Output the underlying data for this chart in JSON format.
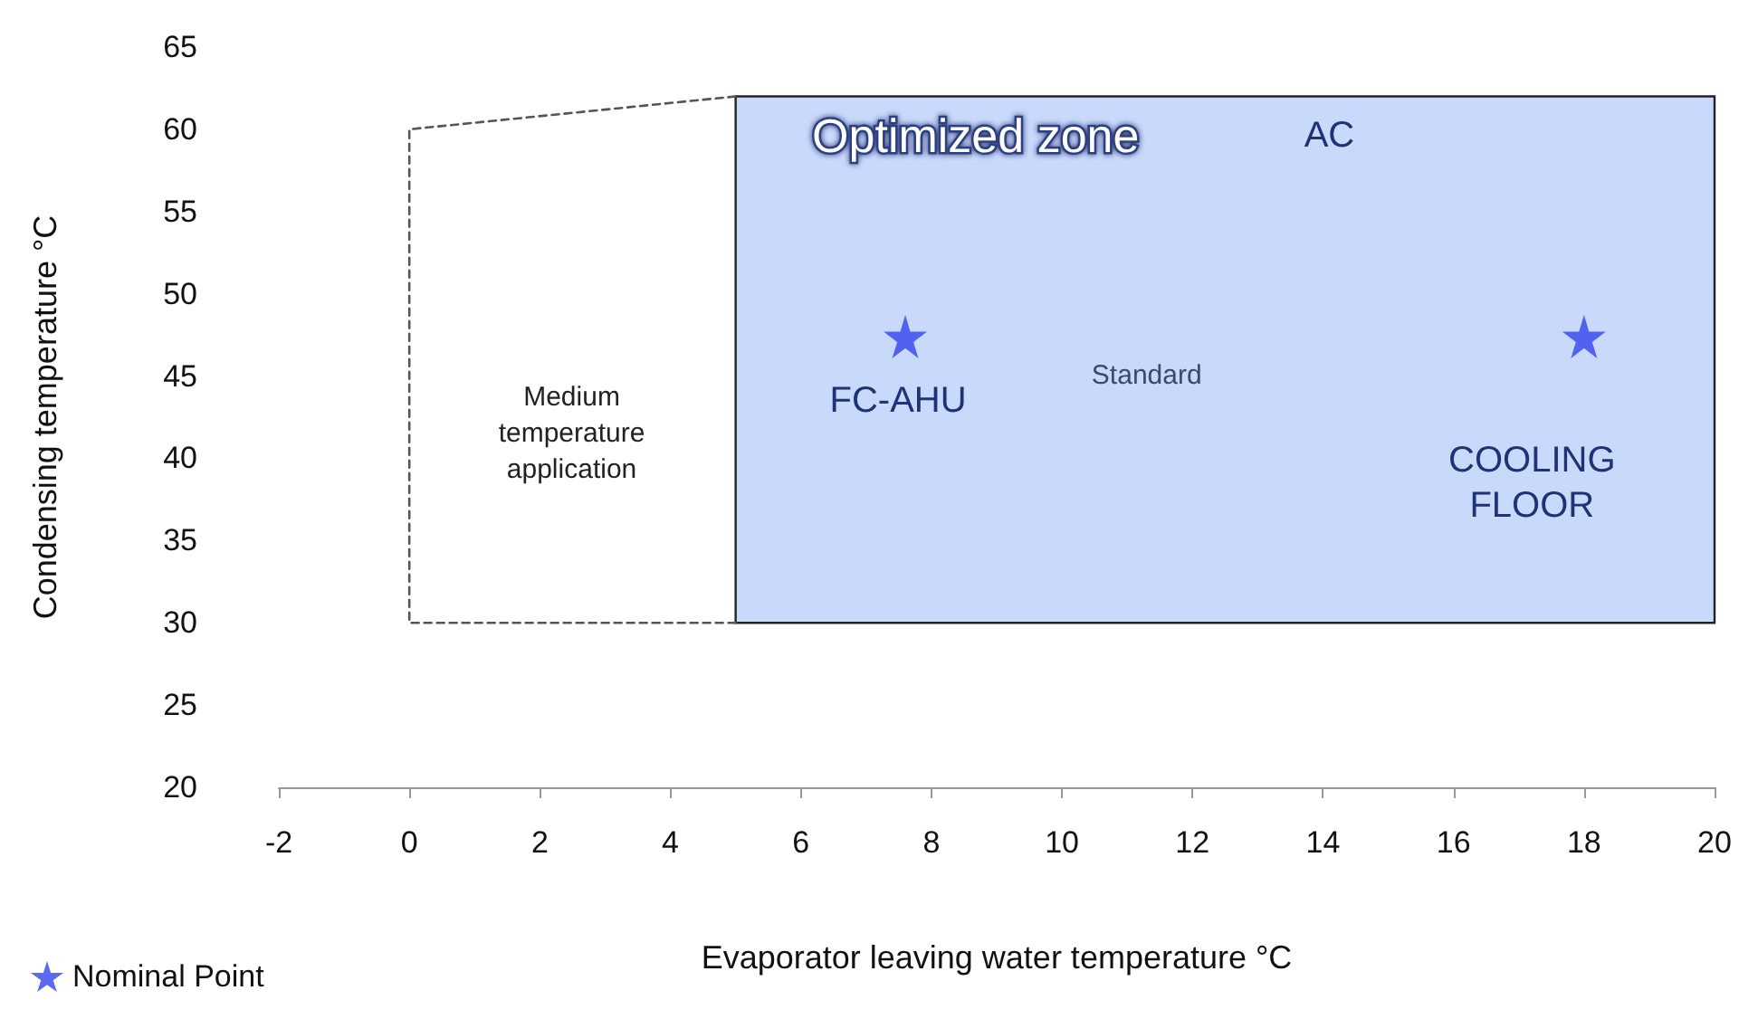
{
  "chart_data": {
    "type": "scatter",
    "xlabel": "Evaporator leaving water temperature °C",
    "ylabel": "Condensing temperature °C",
    "xlim": [
      -2,
      20
    ],
    "xticks": [
      -2,
      0,
      2,
      4,
      6,
      8,
      10,
      12,
      14,
      16,
      18,
      20
    ],
    "ylim": [
      20,
      65
    ],
    "yticks": [
      20,
      25,
      30,
      35,
      40,
      45,
      50,
      55,
      60,
      65
    ],
    "grid": false,
    "legend": "bottom left",
    "series": [
      {
        "type": "area",
        "color": "#c9d9fb",
        "x": [
          5,
          5,
          20,
          20
        ],
        "values": [
          30,
          62,
          62,
          30
        ]
      },
      {
        "type": "line",
        "color": "#555555",
        "line_style": "dashed",
        "marker": "none",
        "x": [
          5,
          0,
          0,
          5
        ],
        "values": [
          30,
          30,
          60,
          62
        ]
      },
      {
        "name": "Nominal Point",
        "color": "#3344ee",
        "marker": "star",
        "x": [
          7.6,
          18
        ],
        "values": [
          47.4,
          47.4
        ]
      }
    ],
    "annotations": [
      "Optimized zone",
      "AC",
      "Standard",
      "FC-AHU",
      "COOLING\nFLOOR",
      "Medium\ntemperature\napplication"
    ]
  }
}
